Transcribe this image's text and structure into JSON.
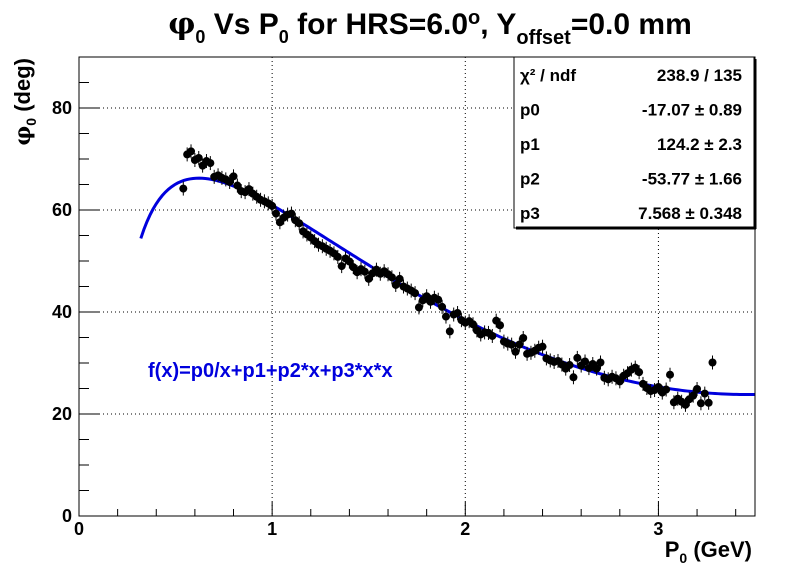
{
  "chart_data": {
    "type": "scatter",
    "title": {
      "main": "φ",
      "sub0": "0",
      "mid1": " Vs P",
      "sub1": "0",
      "mid2": " for HRS=6.0",
      "deg": "o",
      "mid3": ", Y",
      "sub2": "offset",
      "end": "=0.0 mm"
    },
    "xlabel": {
      "main": "P",
      "sub": "0",
      "unit": " (GeV)"
    },
    "ylabel": {
      "main": "φ",
      "sub": "0",
      "unit": " (deg)"
    },
    "xlim": [
      0,
      3.5
    ],
    "ylim": [
      0,
      90
    ],
    "x_ticks": [
      "0",
      "1",
      "2",
      "3"
    ],
    "y_ticks": [
      "0",
      "20",
      "40",
      "60",
      "80"
    ],
    "grid": true,
    "stats": [
      {
        "name": "χ² / ndf",
        "value": "238.9 / 135"
      },
      {
        "name": "p0",
        "value": "-17.07 ± 0.89"
      },
      {
        "name": "p1",
        "value": "124.2 ± 2.3"
      },
      {
        "name": "p2",
        "value": "-53.77 ± 1.66"
      },
      {
        "name": "p3",
        "value": "7.568 ± 0.348"
      }
    ],
    "fit": {
      "label": "f(x)=p0/x+p1+p2*x+p3*x*x",
      "p": [
        -17.07,
        124.2,
        -53.77,
        7.568
      ],
      "x_range": [
        0.32,
        3.5
      ],
      "color": "#0000dd"
    },
    "marker_color": "#000000",
    "points": [
      [
        0.54,
        64.2
      ],
      [
        0.56,
        70.9
      ],
      [
        0.58,
        71.5
      ],
      [
        0.6,
        69.8
      ],
      [
        0.62,
        70.2
      ],
      [
        0.64,
        68.7
      ],
      [
        0.66,
        69.6
      ],
      [
        0.68,
        69.2
      ],
      [
        0.7,
        66.5
      ],
      [
        0.72,
        66.8
      ],
      [
        0.74,
        66.3
      ],
      [
        0.76,
        66.0
      ],
      [
        0.78,
        65.5
      ],
      [
        0.8,
        66.6
      ],
      [
        0.82,
        64.8
      ],
      [
        0.84,
        63.7
      ],
      [
        0.86,
        63.5
      ],
      [
        0.88,
        64.1
      ],
      [
        0.9,
        63.2
      ],
      [
        0.92,
        62.6
      ],
      [
        0.94,
        62.0
      ],
      [
        0.96,
        61.7
      ],
      [
        0.98,
        61.3
      ],
      [
        1.0,
        60.8
      ],
      [
        1.02,
        59.3
      ],
      [
        1.04,
        57.6
      ],
      [
        1.06,
        58.5
      ],
      [
        1.08,
        59.1
      ],
      [
        1.1,
        59.3
      ],
      [
        1.12,
        58.0
      ],
      [
        1.14,
        57.4
      ],
      [
        1.16,
        55.8
      ],
      [
        1.18,
        55.2
      ],
      [
        1.2,
        54.6
      ],
      [
        1.22,
        53.9
      ],
      [
        1.24,
        53.2
      ],
      [
        1.26,
        52.9
      ],
      [
        1.28,
        52.4
      ],
      [
        1.3,
        52.0
      ],
      [
        1.32,
        51.5
      ],
      [
        1.34,
        50.8
      ],
      [
        1.36,
        49.0
      ],
      [
        1.38,
        50.5
      ],
      [
        1.4,
        49.9
      ],
      [
        1.42,
        48.8
      ],
      [
        1.44,
        47.8
      ],
      [
        1.46,
        48.4
      ],
      [
        1.48,
        47.9
      ],
      [
        1.5,
        46.5
      ],
      [
        1.52,
        47.6
      ],
      [
        1.54,
        48.3
      ],
      [
        1.56,
        47.5
      ],
      [
        1.58,
        48.0
      ],
      [
        1.6,
        47.4
      ],
      [
        1.62,
        46.8
      ],
      [
        1.64,
        45.3
      ],
      [
        1.66,
        46.5
      ],
      [
        1.68,
        45.0
      ],
      [
        1.7,
        44.6
      ],
      [
        1.72,
        44.2
      ],
      [
        1.74,
        43.7
      ],
      [
        1.76,
        40.9
      ],
      [
        1.78,
        42.3
      ],
      [
        1.8,
        43.1
      ],
      [
        1.82,
        42.0
      ],
      [
        1.84,
        42.8
      ],
      [
        1.86,
        42.4
      ],
      [
        1.88,
        41.0
      ],
      [
        1.9,
        39.1
      ],
      [
        1.92,
        36.2
      ],
      [
        1.94,
        39.5
      ],
      [
        1.96,
        39.8
      ],
      [
        1.98,
        38.4
      ],
      [
        2.0,
        37.9
      ],
      [
        2.02,
        38.2
      ],
      [
        2.04,
        37.6
      ],
      [
        2.06,
        36.4
      ],
      [
        2.08,
        35.6
      ],
      [
        2.1,
        36.0
      ],
      [
        2.12,
        35.9
      ],
      [
        2.14,
        35.3
      ],
      [
        2.16,
        38.3
      ],
      [
        2.18,
        37.4
      ],
      [
        2.2,
        34.2
      ],
      [
        2.22,
        33.8
      ],
      [
        2.24,
        33.6
      ],
      [
        2.26,
        32.2
      ],
      [
        2.28,
        33.6
      ],
      [
        2.3,
        34.9
      ],
      [
        2.32,
        31.8
      ],
      [
        2.34,
        32.0
      ],
      [
        2.36,
        32.4
      ],
      [
        2.38,
        33.0
      ],
      [
        2.4,
        33.2
      ],
      [
        2.42,
        30.9
      ],
      [
        2.44,
        30.5
      ],
      [
        2.46,
        30.2
      ],
      [
        2.48,
        30.4
      ],
      [
        2.5,
        29.7
      ],
      [
        2.52,
        28.9
      ],
      [
        2.54,
        29.6
      ],
      [
        2.56,
        27.2
      ],
      [
        2.58,
        31.0
      ],
      [
        2.6,
        29.5
      ],
      [
        2.62,
        30.3
      ],
      [
        2.64,
        29.0
      ],
      [
        2.66,
        29.8
      ],
      [
        2.68,
        28.9
      ],
      [
        2.7,
        30.1
      ],
      [
        2.72,
        27.1
      ],
      [
        2.74,
        26.8
      ],
      [
        2.76,
        27.3
      ],
      [
        2.78,
        27.0
      ],
      [
        2.8,
        26.4
      ],
      [
        2.82,
        27.5
      ],
      [
        2.84,
        28.0
      ],
      [
        2.86,
        28.7
      ],
      [
        2.88,
        29.1
      ],
      [
        2.9,
        28.2
      ],
      [
        2.92,
        25.9
      ],
      [
        2.94,
        25.1
      ],
      [
        2.96,
        24.5
      ],
      [
        2.98,
        24.7
      ],
      [
        3.0,
        25.3
      ],
      [
        3.02,
        24.2
      ],
      [
        3.04,
        24.8
      ],
      [
        3.06,
        27.7
      ],
      [
        3.08,
        22.3
      ],
      [
        3.1,
        23.0
      ],
      [
        3.12,
        22.4
      ],
      [
        3.14,
        21.8
      ],
      [
        3.16,
        22.9
      ],
      [
        3.18,
        23.6
      ],
      [
        3.2,
        24.9
      ],
      [
        3.22,
        22.1
      ],
      [
        3.24,
        24.0
      ],
      [
        3.26,
        22.2
      ],
      [
        3.28,
        30.1
      ]
    ]
  }
}
